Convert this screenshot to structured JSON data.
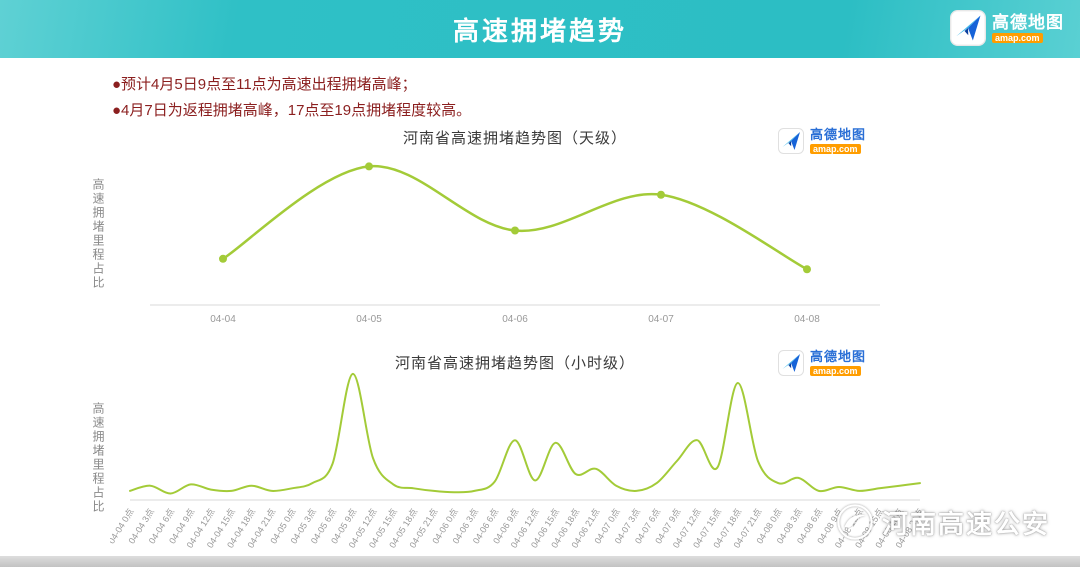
{
  "header": {
    "title": "高速拥堵趋势",
    "logo": {
      "name": "高德地图",
      "domain": "amap.com"
    }
  },
  "notes": [
    "●预计4月5日9点至11点为高速出程拥堵高峰；",
    "●4月7日为返程拥堵高峰，17点至19点拥堵程度较高。"
  ],
  "colors": {
    "banner_teal": "#2fc0c6",
    "note_red": "#8b1f1f",
    "line_green": "#a3cb38",
    "amap_blue": "#2a6fd6",
    "amap_orange": "#ff9d00",
    "axis_gray": "#d8d8d8",
    "tick_gray": "#999999"
  },
  "watermark": {
    "text": "河南高速公安"
  },
  "chart_data": [
    {
      "type": "line",
      "title": "河南省高速拥堵趋势图（天级）",
      "xlabel": "",
      "ylabel": "高速拥堵里程占比",
      "categories": [
        "04-04",
        "04-05",
        "04-06",
        "04-07",
        "04-08"
      ],
      "values": [
        0.31,
        0.93,
        0.5,
        0.74,
        0.24
      ],
      "ylim": [
        0,
        1
      ],
      "grid": false,
      "legend": "none",
      "line_color": "#a3cb38",
      "markers": true,
      "smooth": true
    },
    {
      "type": "line",
      "title": "河南省高速拥堵趋势图（小时级）",
      "xlabel": "",
      "ylabel": "高速拥堵里程占比",
      "categories": [
        "04-04 0点",
        "04-04 3点",
        "04-04 6点",
        "04-04 9点",
        "04-04 12点",
        "04-04 15点",
        "04-04 18点",
        "04-04 21点",
        "04-05 0点",
        "04-05 3点",
        "04-05 6点",
        "04-05 9点",
        "04-05 12点",
        "04-05 15点",
        "04-05 18点",
        "04-05 21点",
        "04-06 0点",
        "04-06 3点",
        "04-06 6点",
        "04-06 9点",
        "04-06 12点",
        "04-06 15点",
        "04-06 18点",
        "04-06 21点",
        "04-07 0点",
        "04-07 3点",
        "04-07 6点",
        "04-07 9点",
        "04-07 12点",
        "04-07 15点",
        "04-07 18点",
        "04-07 21点",
        "04-08 0点",
        "04-08 3点",
        "04-08 6点",
        "04-08 9点",
        "04-08 12点",
        "04-08 15点",
        "04-08 18点",
        "04-08 21点"
      ],
      "values": [
        0.07,
        0.11,
        0.05,
        0.12,
        0.08,
        0.07,
        0.11,
        0.07,
        0.09,
        0.13,
        0.28,
        0.97,
        0.32,
        0.12,
        0.09,
        0.07,
        0.06,
        0.07,
        0.14,
        0.46,
        0.15,
        0.44,
        0.2,
        0.24,
        0.11,
        0.07,
        0.13,
        0.3,
        0.46,
        0.25,
        0.9,
        0.3,
        0.13,
        0.17,
        0.07,
        0.1,
        0.07,
        0.09,
        0.11,
        0.13
      ],
      "ylim": [
        0,
        1
      ],
      "grid": false,
      "legend": "none",
      "line_color": "#a3cb38",
      "markers": false,
      "smooth": true
    }
  ]
}
